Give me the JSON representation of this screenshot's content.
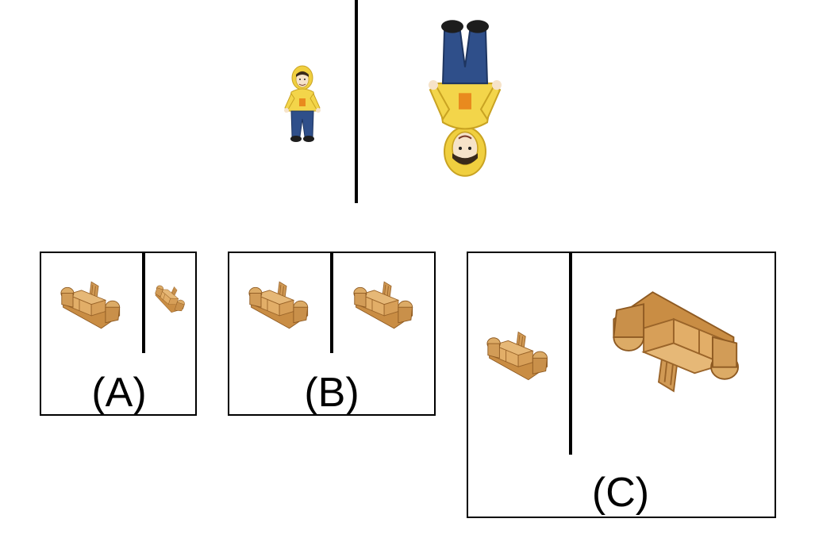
{
  "prompt": {
    "figure_left": "small-standing-figure",
    "figure_right": "large-inverted-figure"
  },
  "options": [
    {
      "id": "A",
      "label": "(A)"
    },
    {
      "id": "B",
      "label": "(B)"
    },
    {
      "id": "C",
      "label": "(C)"
    }
  ],
  "colors": {
    "hood": "#f3d54a",
    "jeans": "#2f4f8a",
    "skin": "#f4e0c4",
    "wood": "#d8a765",
    "wood_dark": "#a06a2c",
    "line": "#000000"
  }
}
